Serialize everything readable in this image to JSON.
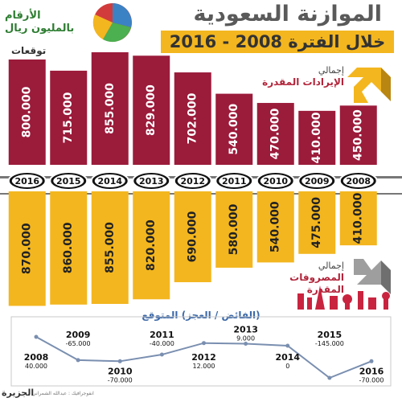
{
  "title": "الموازنة السعودية",
  "subtitle": "خلال الفترة 2008 - 2016",
  "units_line1": "الأرقام",
  "units_line2": "بالمليون ريال",
  "forecast_label": "توقعات",
  "revenue_label_line1": "إجمالي",
  "revenue_label_line2": "الإيرادات المقدرة",
  "expense_label_line1": "إجمالي",
  "expense_label_line2": "المصروفات المقدرة",
  "surplus_title": "(الفائض / العجز) المتوقع",
  "credit": "انفوجرافيك : عبدالله الشمراني",
  "logo": "الجزيرة",
  "colors": {
    "revenue": "#9b1b3b",
    "expense": "#f3b61f",
    "year_pill": "#111111",
    "line": "#7a8fb0"
  },
  "chart_data": [
    {
      "type": "bar",
      "categories": [
        "2016",
        "2015",
        "2014",
        "2013",
        "2012",
        "2011",
        "2010",
        "2009",
        "2008"
      ],
      "series": [
        {
          "name": "الإيرادات المقدرة",
          "values": [
            800000,
            715000,
            855000,
            829000,
            702000,
            540000,
            470000,
            410000,
            450000
          ],
          "labels": [
            "800.000",
            "715.000",
            "855.000",
            "829.000",
            "702.000",
            "540.000",
            "470.000",
            "410.000",
            "450.000"
          ]
        },
        {
          "name": "المصروفات المقدرة",
          "values": [
            870000,
            860000,
            855000,
            820000,
            690000,
            580000,
            540000,
            475000,
            410000
          ],
          "labels": [
            "870.000",
            "860.000",
            "855.000",
            "820.000",
            "690.000",
            "580.000",
            "540.000",
            "475.000",
            "410.000"
          ]
        }
      ]
    },
    {
      "type": "line",
      "title": "(الفائض / العجز) المتوقع",
      "x": [
        "2008",
        "2009",
        "2010",
        "2011",
        "2012",
        "2013",
        "2014",
        "2015",
        "2016"
      ],
      "values": [
        40000,
        -65000,
        -70000,
        -40000,
        12000,
        9000,
        0,
        -145000,
        -70000
      ],
      "labels": [
        "40.000",
        "-65.000",
        "-70.000",
        "-40.000",
        "12.000",
        "9.000",
        "0",
        "-145.000",
        "-70.000"
      ]
    }
  ]
}
